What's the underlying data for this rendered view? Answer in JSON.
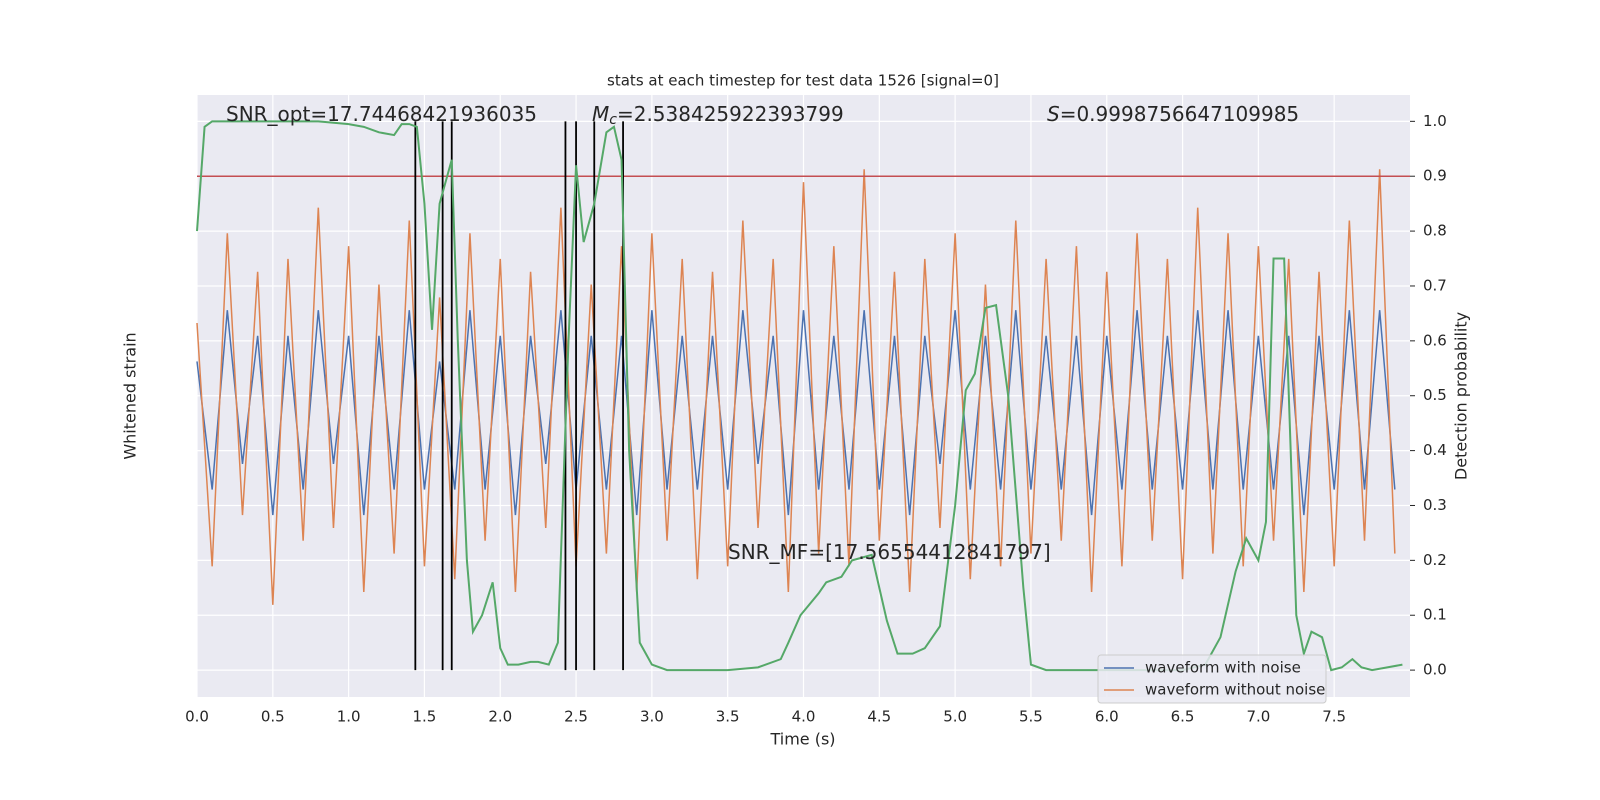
{
  "chart_data": {
    "type": "line",
    "title": "stats at each timestep for test data 1526 [signal=0]",
    "xlabel": "Time (s)",
    "ylabel": "Whitened strain",
    "y2label": "Detection probability",
    "xlim": [
      0,
      8.0
    ],
    "xticks": [
      {
        "value": 0,
        "label": "0.0"
      },
      0.5,
      {
        "value": 1,
        "label": "1.0"
      },
      1.5,
      {
        "value": 2,
        "label": "2.0"
      },
      2.5,
      {
        "value": 3,
        "label": "3.0"
      },
      3.5,
      {
        "value": 4,
        "label": "4.0"
      },
      4.5,
      {
        "value": 5,
        "label": "5.0"
      },
      5.5,
      {
        "value": 6,
        "label": "6.0"
      },
      6.5,
      {
        "value": 7,
        "label": "7.0"
      },
      7.5
    ],
    "ylim": [
      -1.11,
      1.24
    ],
    "y2lim": [
      -0.049,
      1.048
    ],
    "y2ticks": [
      {
        "value": 0,
        "label": "0.0"
      },
      0.1,
      0.2,
      0.3,
      0.4,
      0.5,
      0.6,
      0.7,
      0.8,
      0.9,
      {
        "value": 1,
        "label": "1.0"
      }
    ],
    "grid": true,
    "legend": "lower right",
    "x": [
      0.0,
      0.1,
      0.2,
      0.3,
      0.4,
      0.5,
      0.6,
      0.7,
      0.8,
      0.9,
      1.0,
      1.1,
      1.2,
      1.3,
      1.4,
      1.5,
      1.6,
      1.7,
      1.8,
      1.9,
      2.0,
      2.1,
      2.2,
      2.3,
      2.4,
      2.5,
      2.6,
      2.7,
      2.8,
      2.9,
      3.0,
      3.1,
      3.2,
      3.3,
      3.4,
      3.5,
      3.6,
      3.7,
      3.8,
      3.9,
      4.0,
      4.1,
      4.2,
      4.3,
      4.4,
      4.5,
      4.6,
      4.7,
      4.8,
      4.9,
      5.0,
      5.1,
      5.2,
      5.3,
      5.4,
      5.5,
      5.6,
      5.7,
      5.8,
      5.9,
      6.0,
      6.1,
      6.2,
      6.3,
      6.4,
      6.5,
      6.6,
      6.7,
      6.8,
      6.9,
      7.0,
      7.1,
      7.2,
      7.3,
      7.4,
      7.5,
      7.6,
      7.7,
      7.8,
      7.9
    ],
    "series": [
      {
        "name": "waveform with noise",
        "color": "#4c72b0",
        "values": [
          0.2,
          -0.3,
          0.4,
          -0.2,
          0.3,
          -0.4,
          0.3,
          -0.3,
          0.4,
          -0.2,
          0.3,
          -0.4,
          0.3,
          -0.3,
          0.4,
          -0.3,
          0.2,
          -0.3,
          0.4,
          -0.3,
          0.3,
          -0.4,
          0.3,
          -0.2,
          0.4,
          -0.3,
          0.3,
          -0.3,
          0.3,
          -0.4,
          0.4,
          -0.3,
          0.3,
          -0.3,
          0.3,
          -0.3,
          0.4,
          -0.2,
          0.3,
          -0.4,
          0.4,
          -0.3,
          0.3,
          -0.3,
          0.4,
          -0.3,
          0.3,
          -0.4,
          0.3,
          -0.2,
          0.4,
          -0.3,
          0.3,
          -0.3,
          0.4,
          -0.3,
          0.3,
          -0.3,
          0.3,
          -0.4,
          0.3,
          -0.3,
          0.4,
          -0.3,
          0.3,
          -0.3,
          0.4,
          -0.3,
          0.4,
          -0.3,
          0.3,
          -0.3,
          0.3,
          -0.4,
          0.3,
          -0.3,
          0.4,
          -0.3,
          0.4,
          -0.3
        ]
      },
      {
        "name": "waveform without noise",
        "color": "#dd8452",
        "values": [
          0.35,
          -0.6,
          0.7,
          -0.4,
          0.55,
          -0.75,
          0.6,
          -0.5,
          0.8,
          -0.45,
          0.65,
          -0.7,
          0.5,
          -0.55,
          0.75,
          -0.6,
          0.45,
          -0.65,
          0.7,
          -0.5,
          0.6,
          -0.7,
          0.55,
          -0.45,
          0.8,
          -0.6,
          0.5,
          -0.55,
          0.65,
          -0.7,
          0.7,
          -0.5,
          0.6,
          -0.65,
          0.55,
          -0.6,
          0.75,
          -0.45,
          0.6,
          -0.7,
          0.9,
          -0.55,
          0.65,
          -0.6,
          0.95,
          -0.5,
          0.55,
          -0.7,
          0.6,
          -0.45,
          0.7,
          -0.65,
          0.5,
          -0.6,
          0.75,
          -0.55,
          0.6,
          -0.5,
          0.65,
          -0.7,
          0.55,
          -0.6,
          0.7,
          -0.5,
          0.6,
          -0.65,
          0.8,
          -0.55,
          0.7,
          -0.6,
          0.65,
          -0.5,
          0.6,
          -0.7,
          0.55,
          -0.6,
          0.75,
          -0.5,
          0.95,
          -0.55
        ]
      }
    ],
    "detection": {
      "color": "#55a868",
      "axis": "y2",
      "x": [
        0.0,
        0.05,
        0.1,
        0.2,
        0.5,
        0.8,
        1.0,
        1.1,
        1.2,
        1.3,
        1.35,
        1.4,
        1.45,
        1.5,
        1.55,
        1.6,
        1.68,
        1.72,
        1.78,
        1.82,
        1.88,
        1.95,
        2.0,
        2.05,
        2.12,
        2.2,
        2.25,
        2.32,
        2.38,
        2.45,
        2.5,
        2.55,
        2.62,
        2.7,
        2.75,
        2.8,
        2.85,
        2.92,
        3.0,
        3.1,
        3.5,
        3.7,
        3.85,
        3.9,
        3.98,
        4.1,
        4.15,
        4.25,
        4.32,
        4.45,
        4.55,
        4.62,
        4.72,
        4.8,
        4.9,
        5.0,
        5.07,
        5.13,
        5.2,
        5.27,
        5.35,
        5.45,
        5.5,
        5.6,
        6.0,
        6.5,
        6.65,
        6.75,
        6.85,
        6.92,
        7.0,
        7.05,
        7.1,
        7.17,
        7.25,
        7.3,
        7.35,
        7.42,
        7.48,
        7.55,
        7.62,
        7.68,
        7.75,
        7.85,
        7.95
      ],
      "values": [
        0.8,
        0.99,
        1.0,
        1.0,
        1.0,
        1.0,
        0.995,
        0.99,
        0.98,
        0.975,
        0.995,
        0.995,
        0.99,
        0.85,
        0.62,
        0.85,
        0.93,
        0.6,
        0.2,
        0.07,
        0.1,
        0.16,
        0.04,
        0.01,
        0.01,
        0.015,
        0.015,
        0.01,
        0.05,
        0.6,
        0.92,
        0.78,
        0.85,
        0.98,
        0.99,
        0.93,
        0.4,
        0.05,
        0.01,
        0.0,
        0.0,
        0.005,
        0.02,
        0.05,
        0.1,
        0.14,
        0.16,
        0.17,
        0.2,
        0.21,
        0.09,
        0.03,
        0.03,
        0.04,
        0.08,
        0.3,
        0.51,
        0.54,
        0.66,
        0.665,
        0.5,
        0.15,
        0.01,
        0.0,
        0.0,
        0.0,
        0.01,
        0.06,
        0.18,
        0.24,
        0.2,
        0.27,
        0.75,
        0.75,
        0.1,
        0.03,
        0.07,
        0.06,
        0.0,
        0.005,
        0.02,
        0.005,
        0.0,
        0.005,
        0.01
      ]
    },
    "threshold": {
      "color": "#c44e52",
      "axis": "y2",
      "value": 0.9
    },
    "vlines": {
      "color": "#000000",
      "x": [
        1.44,
        1.62,
        1.68,
        2.43,
        2.5,
        2.62,
        2.81
      ]
    },
    "annotations": [
      {
        "text": "SNR_opt=17.74468421936035"
      },
      {
        "symbol": "M",
        "subscript": "c",
        "text": "=2.538425922393799"
      },
      {
        "symbol": "S",
        "text": "=0.9998756647109985"
      },
      {
        "text": "SNR_MF=[17.56554412841797]"
      }
    ]
  }
}
